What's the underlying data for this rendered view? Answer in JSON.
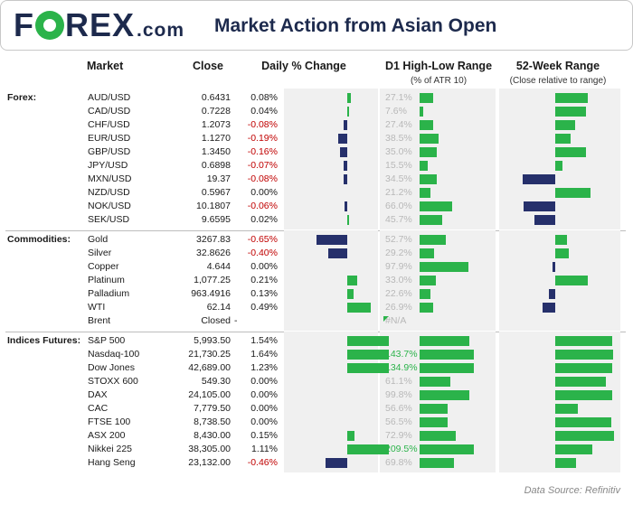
{
  "header": {
    "logo_text_left": "F",
    "logo_text_right": "REX",
    "logo_suffix": ".com",
    "title": "Market Action from Asian Open"
  },
  "columns": {
    "market": "Market",
    "close": "Close",
    "daily": "Daily % Change",
    "d1": "D1 High-Low Range",
    "d1_sub": "(% of ATR 10)",
    "wk52": "52-Week Range",
    "wk52_sub": "(Close relative to range)"
  },
  "groups": [
    {
      "label": "Forex:",
      "rows": [
        {
          "market": "AUD/USD",
          "close": "0.6431",
          "change": "0.08%",
          "change_val": 0.08,
          "atr": "27.1%",
          "atr_val": 27.1,
          "wk52": 0.52
        },
        {
          "market": "CAD/USD",
          "close": "0.7228",
          "change": "0.04%",
          "change_val": 0.04,
          "atr": "7.6%",
          "atr_val": 7.6,
          "wk52": 0.49
        },
        {
          "market": "CHF/USD",
          "close": "1.2073",
          "change": "-0.08%",
          "change_val": -0.08,
          "atr": "27.4%",
          "atr_val": 27.4,
          "wk52": 0.31
        },
        {
          "market": "EUR/USD",
          "close": "1.1270",
          "change": "-0.19%",
          "change_val": -0.19,
          "atr": "38.5%",
          "atr_val": 38.5,
          "wk52": 0.24
        },
        {
          "market": "GBP/USD",
          "close": "1.3450",
          "change": "-0.16%",
          "change_val": -0.16,
          "atr": "35.0%",
          "atr_val": 35.0,
          "wk52": 0.49
        },
        {
          "market": "JPY/USD",
          "close": "0.6898",
          "change": "-0.07%",
          "change_val": -0.07,
          "atr": "15.5%",
          "atr_val": 15.5,
          "wk52": 0.12
        },
        {
          "market": "MXN/USD",
          "close": "19.37",
          "change": "-0.08%",
          "change_val": -0.08,
          "atr": "34.5%",
          "atr_val": 34.5,
          "wk52": -0.52
        },
        {
          "market": "NZD/USD",
          "close": "0.5967",
          "change": "0.00%",
          "change_val": 0.0,
          "atr": "21.2%",
          "atr_val": 21.2,
          "wk52": 0.55
        },
        {
          "market": "NOK/USD",
          "close": "10.1807",
          "change": "-0.06%",
          "change_val": -0.06,
          "atr": "66.0%",
          "atr_val": 66.0,
          "wk52": -0.5
        },
        {
          "market": "SEK/USD",
          "close": "9.6595",
          "change": "0.02%",
          "change_val": 0.02,
          "atr": "45.7%",
          "atr_val": 45.7,
          "wk52": -0.33
        }
      ]
    },
    {
      "label": "Commodities:",
      "rows": [
        {
          "market": "Gold",
          "close": "3267.83",
          "change": "-0.65%",
          "change_val": -0.65,
          "atr": "52.7%",
          "atr_val": 52.7,
          "wk52": 0.19
        },
        {
          "market": "Silver",
          "close": "32.8626",
          "change": "-0.40%",
          "change_val": -0.4,
          "atr": "29.2%",
          "atr_val": 29.2,
          "wk52": 0.22
        },
        {
          "market": "Copper",
          "close": "4.644",
          "change": "0.00%",
          "change_val": 0.0,
          "atr": "97.9%",
          "atr_val": 97.9,
          "wk52": -0.04
        },
        {
          "market": "Platinum",
          "close": "1,077.25",
          "change": "0.21%",
          "change_val": 0.21,
          "atr": "33.0%",
          "atr_val": 33.0,
          "wk52": 0.52
        },
        {
          "market": "Palladium",
          "close": "963.4916",
          "change": "0.13%",
          "change_val": 0.13,
          "atr": "22.6%",
          "atr_val": 22.6,
          "wk52": -0.1
        },
        {
          "market": "WTI",
          "close": "62.14",
          "change": "0.49%",
          "change_val": 0.49,
          "atr": "26.9%",
          "atr_val": 26.9,
          "wk52": -0.2
        },
        {
          "market": "Brent",
          "close": "Closed",
          "close_dash": "-",
          "change": "",
          "change_val": 0.0,
          "atr": "#N/A",
          "atr_val": 0,
          "wk52": 0
        }
      ]
    },
    {
      "label": "Indices Futures:",
      "rows": [
        {
          "market": "S&P 500",
          "close": "5,993.50",
          "change": "1.54%",
          "change_val": 1.54,
          "atr": "",
          "atr_val": 100,
          "wk52": 0.9
        },
        {
          "market": "Nasdaq-100",
          "close": "21,730.25",
          "change": "1.64%",
          "change_val": 1.64,
          "atr": "143.7%",
          "atr_val": 143.7,
          "wk52": 0.92
        },
        {
          "market": "Dow Jones",
          "close": "42,689.00",
          "change": "1.23%",
          "change_val": 1.23,
          "atr": "134.9%",
          "atr_val": 134.9,
          "wk52": 0.9
        },
        {
          "market": "STOXX 600",
          "close": "549.30",
          "change": "0.00%",
          "change_val": 0.0,
          "atr": "61.1%",
          "atr_val": 61.1,
          "wk52": 0.8
        },
        {
          "market": "DAX",
          "close": "24,105.00",
          "change": "0.00%",
          "change_val": 0.0,
          "atr": "99.8%",
          "atr_val": 99.8,
          "wk52": 0.9
        },
        {
          "market": "CAC",
          "close": "7,779.50",
          "change": "0.00%",
          "change_val": 0.0,
          "atr": "56.6%",
          "atr_val": 56.6,
          "wk52": 0.35
        },
        {
          "market": "FTSE 100",
          "close": "8,738.50",
          "change": "0.00%",
          "change_val": 0.0,
          "atr": "56.5%",
          "atr_val": 56.5,
          "wk52": 0.88
        },
        {
          "market": "ASX 200",
          "close": "8,430.00",
          "change": "0.15%",
          "change_val": 0.15,
          "atr": "72.9%",
          "atr_val": 72.9,
          "wk52": 0.93
        },
        {
          "market": "Nikkei 225",
          "close": "38,305.00",
          "change": "1.11%",
          "change_val": 1.11,
          "atr": "209.5%",
          "atr_val": 209.5,
          "wk52": 0.58
        },
        {
          "market": "Hang Seng",
          "close": "23,132.00",
          "change": "-0.46%",
          "change_val": -0.46,
          "atr": "69.8%",
          "atr_val": 69.8,
          "wk52": 0.33
        }
      ]
    }
  ],
  "footer": {
    "source": "Data Source: Refinitiv"
  },
  "colors": {
    "positive": "#2bb34a",
    "negative": "#26306b",
    "negative_text": "#c00000",
    "brand": "#1d2a4d"
  }
}
